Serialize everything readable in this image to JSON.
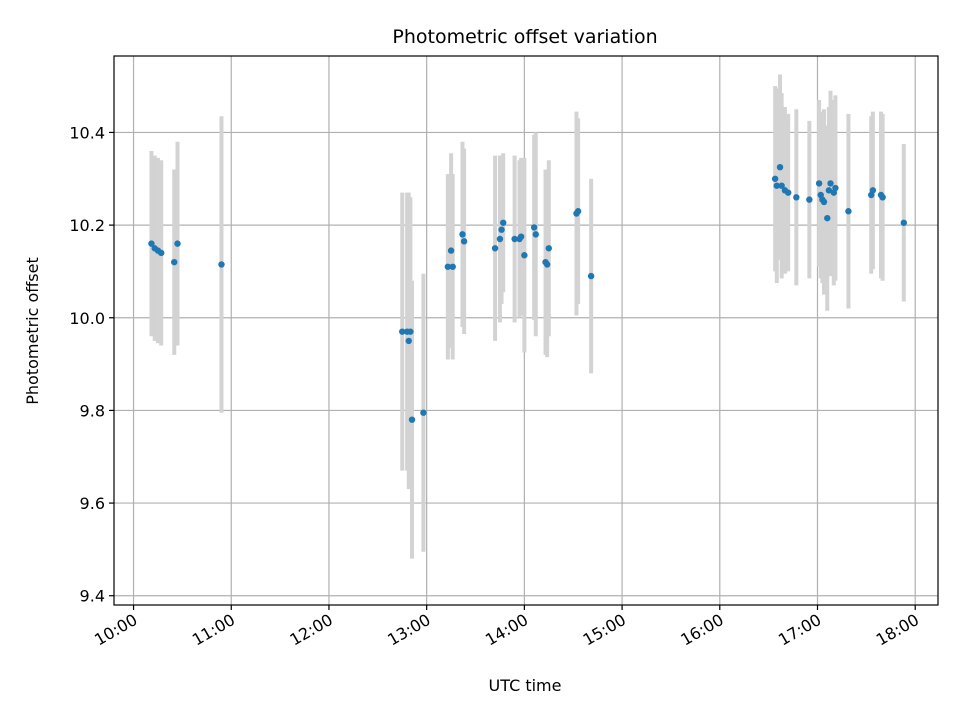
{
  "chart_data": {
    "type": "scatter",
    "title": "Photometric offset variation",
    "xlabel": "UTC time",
    "ylabel": "Photometric offset",
    "grid": true,
    "x_tick_labels": [
      "10:00",
      "11:00",
      "12:00",
      "13:00",
      "14:00",
      "15:00",
      "16:00",
      "17:00",
      "18:00"
    ],
    "y_ticks": [
      9.4,
      9.6,
      9.8,
      10.0,
      10.2,
      10.4
    ],
    "y_tick_labels": [
      "9.4",
      "9.6",
      "9.8",
      "10.0",
      "10.2",
      "10.4"
    ],
    "xlim": [
      "09:48",
      "18:14"
    ],
    "ylim": [
      9.38,
      10.565
    ],
    "colors": {
      "point": "#1f77b4",
      "errorbar": "#d3d3d3",
      "grid": "#b0b0b0"
    },
    "series": [
      {
        "x": [
          "10:11",
          "10:13",
          "10:15",
          "10:17",
          "10:25",
          "10:27",
          "10:54",
          "12:45",
          "12:48",
          "12:49",
          "12:50",
          "12:51",
          "12:58",
          "13:13",
          "13:15",
          "13:16",
          "13:22",
          "13:23",
          "13:42",
          "13:45",
          "13:46",
          "13:47",
          "13:54",
          "13:57",
          "13:58",
          "14:00",
          "14:06",
          "14:07",
          "14:13",
          "14:14",
          "14:15",
          "14:32",
          "14:33",
          "14:41",
          "16:34",
          "16:35",
          "16:37",
          "16:38",
          "16:40",
          "16:42",
          "16:47",
          "16:55",
          "17:01",
          "17:02",
          "17:03",
          "17:04",
          "17:06",
          "17:07",
          "17:08",
          "17:10",
          "17:11",
          "17:19",
          "17:33",
          "17:34",
          "17:39",
          "17:40",
          "17:53"
        ],
        "y": [
          10.16,
          10.15,
          10.145,
          10.14,
          10.12,
          10.16,
          10.115,
          9.97,
          9.97,
          9.95,
          9.97,
          9.78,
          9.795,
          10.11,
          10.145,
          10.11,
          10.18,
          10.165,
          10.15,
          10.17,
          10.19,
          10.205,
          10.17,
          10.17,
          10.175,
          10.135,
          10.195,
          10.18,
          10.12,
          10.115,
          10.15,
          10.225,
          10.23,
          10.09,
          10.3,
          10.285,
          10.325,
          10.285,
          10.275,
          10.27,
          10.26,
          10.255,
          10.29,
          10.265,
          10.255,
          10.25,
          10.215,
          10.275,
          10.29,
          10.27,
          10.28,
          10.23,
          10.265,
          10.275,
          10.265,
          10.26,
          10.205
        ],
        "yerr": [
          0.2,
          0.2,
          0.2,
          0.2,
          0.2,
          0.22,
          0.32,
          0.3,
          0.3,
          0.32,
          0.29,
          0.3,
          0.3,
          0.2,
          0.21,
          0.2,
          0.2,
          0.2,
          0.2,
          0.18,
          0.16,
          0.15,
          0.18,
          0.17,
          0.17,
          0.21,
          0.2,
          0.22,
          0.2,
          0.2,
          0.19,
          0.22,
          0.2,
          0.21,
          0.2,
          0.21,
          0.2,
          0.2,
          0.18,
          0.17,
          0.19,
          0.17,
          0.18,
          0.18,
          0.18,
          0.2,
          0.2,
          0.18,
          0.2,
          0.2,
          0.2,
          0.21,
          0.17,
          0.17,
          0.18,
          0.18,
          0.17
        ]
      }
    ]
  }
}
